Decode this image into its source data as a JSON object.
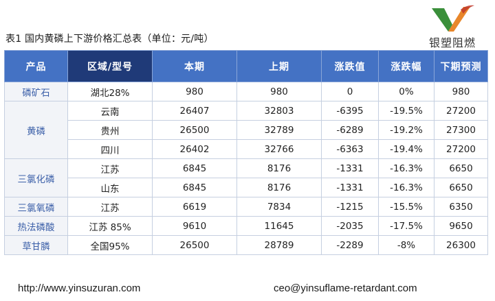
{
  "title": "表1 国内黄磷上下游价格汇总表（单位：元/吨）",
  "logo": {
    "text": "银塑阻燃",
    "colors": {
      "green": "#3a8f3a",
      "orange": "#e8862a"
    }
  },
  "colors": {
    "header": "#4472c4",
    "header_dark": "#1f3a78",
    "product_text": "#3b5fa8"
  },
  "table": {
    "headers": [
      "产品",
      "区域/型号",
      "本期",
      "上期",
      "涨跌值",
      "涨跌幅",
      "下期预测"
    ],
    "rows": [
      {
        "product": "磷矿石",
        "region": "湖北28%",
        "current": "980",
        "previous": "980",
        "change": "0",
        "pct": "0%",
        "forecast": "980"
      },
      {
        "product": "黄磷",
        "region": "云南",
        "current": "26407",
        "previous": "32803",
        "change": "-6395",
        "pct": "-19.5%",
        "forecast": "27200"
      },
      {
        "product": "",
        "region": "贵州",
        "current": "26500",
        "previous": "32789",
        "change": "-6289",
        "pct": "-19.2%",
        "forecast": "27300"
      },
      {
        "product": "",
        "region": "四川",
        "current": "26402",
        "previous": "32766",
        "change": "-6363",
        "pct": "-19.4%",
        "forecast": "27200"
      },
      {
        "product": "三氯化磷",
        "region": "江苏",
        "current": "6845",
        "previous": "8176",
        "change": "-1331",
        "pct": "-16.3%",
        "forecast": "6650"
      },
      {
        "product": "",
        "region": "山东",
        "current": "6845",
        "previous": "8176",
        "change": "-1331",
        "pct": "-16.3%",
        "forecast": "6650"
      },
      {
        "product": "三氯氧磷",
        "region": "江苏",
        "current": "6619",
        "previous": "7834",
        "change": "-1215",
        "pct": "-15.5%",
        "forecast": "6350"
      },
      {
        "product": "热法磷酸",
        "region": "江苏 85%",
        "current": "9610",
        "previous": "11645",
        "change": "-2035",
        "pct": "-17.5%",
        "forecast": "9650"
      },
      {
        "product": "草甘膦",
        "region": "全国95%",
        "current": "26500",
        "previous": "28789",
        "change": "-2289",
        "pct": "-8%",
        "forecast": "26300"
      }
    ]
  },
  "footer": {
    "url": "http://www.yinsuzuran.com",
    "email": "ceo@yinsuflame-retardant.com"
  }
}
